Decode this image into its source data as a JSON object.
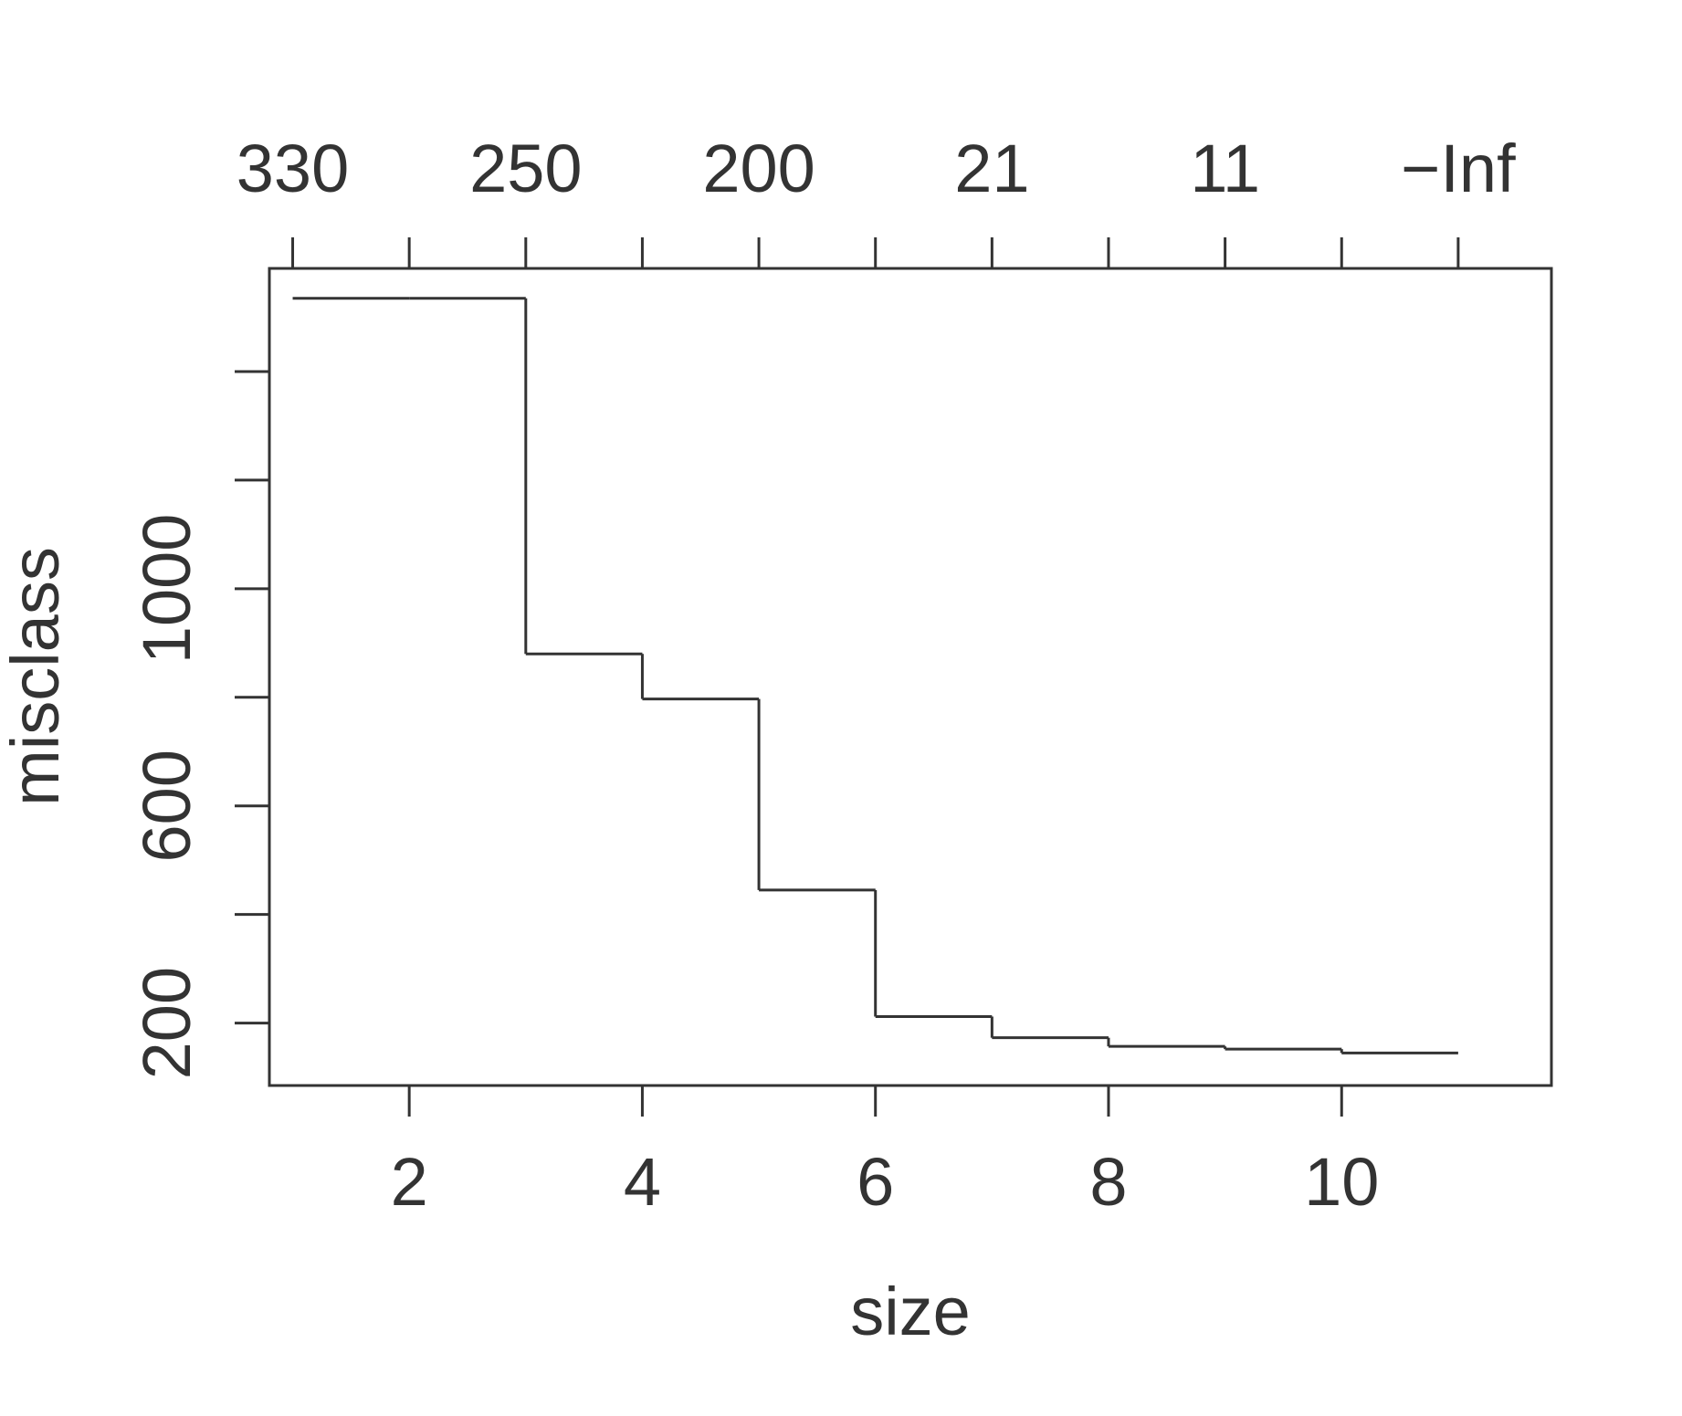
{
  "chart_data": {
    "type": "line",
    "step": true,
    "xlabel": "size",
    "ylabel": "misclass",
    "xlim": [
      0.8,
      11.8
    ],
    "ylim": [
      85,
      1590
    ],
    "x_ticks": [
      1,
      2,
      3,
      4,
      5,
      6,
      7,
      8,
      9,
      10,
      11
    ],
    "x_tick_labels": [
      "2",
      "4",
      "6",
      "8",
      "10"
    ],
    "x_tick_label_values": [
      2,
      4,
      6,
      8,
      10
    ],
    "y_ticks": [
      200,
      400,
      600,
      800,
      1000,
      1200,
      1400
    ],
    "y_tick_labels": [
      "200",
      "600",
      "1000"
    ],
    "y_tick_label_values": [
      200,
      600,
      1000
    ],
    "top_axis": {
      "ticks_at_x": [
        1,
        2,
        3,
        4,
        5,
        6,
        7,
        8,
        9,
        10,
        11
      ],
      "labels": [
        "330",
        "250",
        "200",
        "21",
        "11",
        "−Inf"
      ],
      "label_at_x": [
        1,
        3,
        5,
        7,
        9,
        11
      ]
    },
    "series": [
      {
        "x": [
          1,
          2,
          3,
          4,
          5,
          6,
          7,
          8,
          9,
          10,
          11
        ],
        "values": [
          1535,
          1535,
          880,
          797,
          445,
          212,
          173,
          157,
          152,
          145,
          145
        ]
      }
    ],
    "grid": false,
    "legend": "none"
  }
}
